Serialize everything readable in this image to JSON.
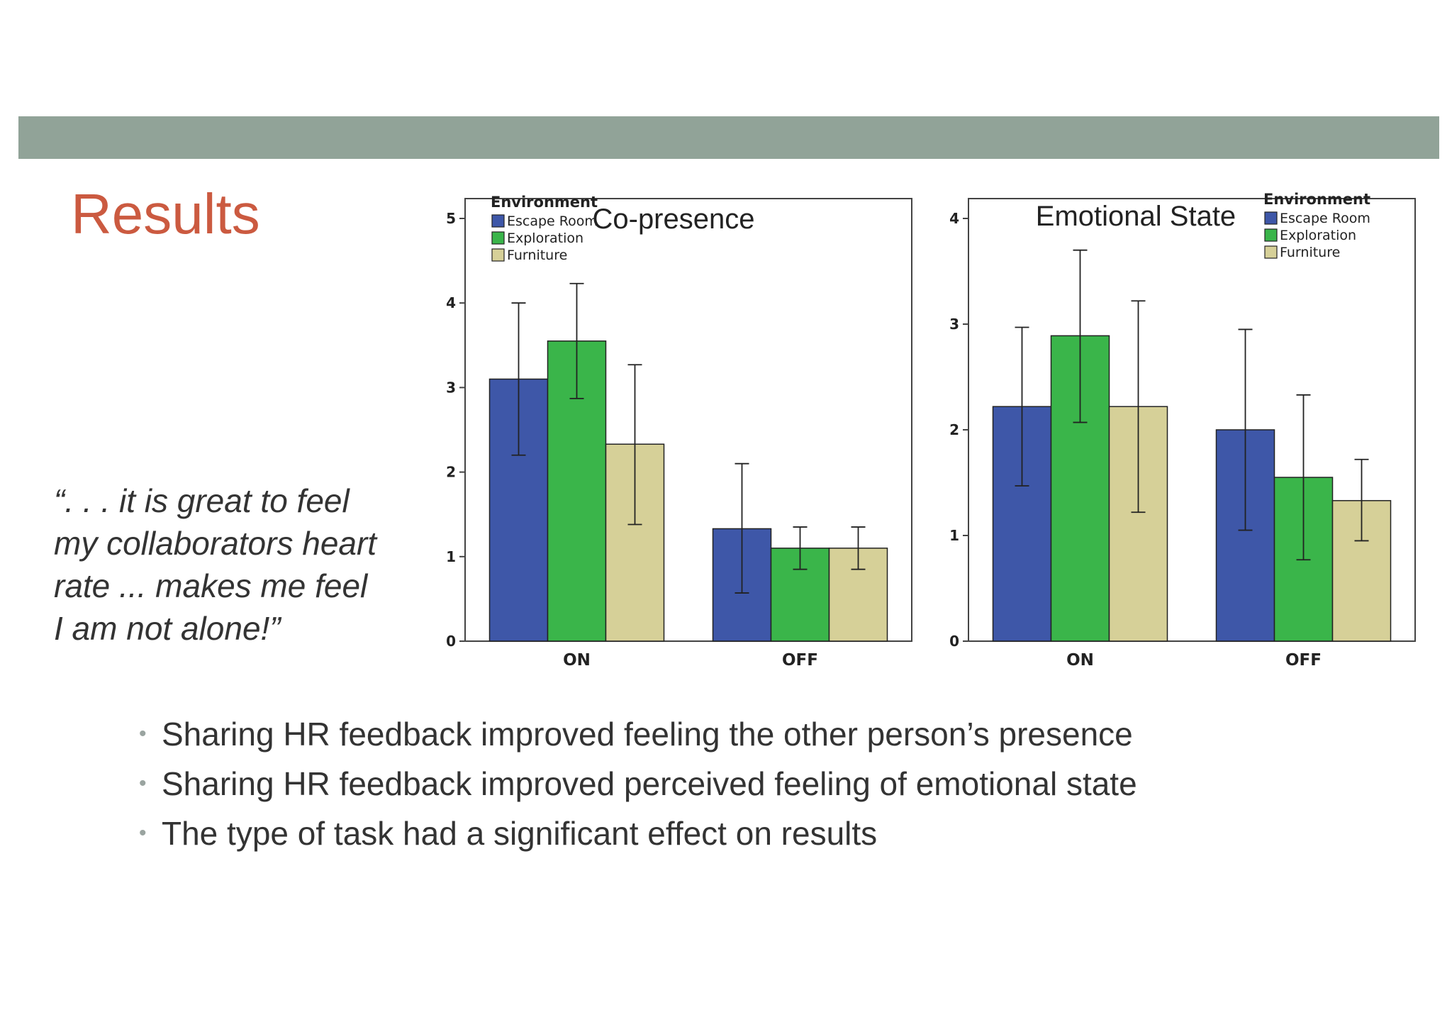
{
  "slide": {
    "title": "Results",
    "quote_lines": [
      "“. . . it is great to feel",
      "my collaborators heart",
      "rate ... makes me feel",
      "I am not alone!”"
    ],
    "bullets": [
      "Sharing HR feedback improved feeling the other person’s presence",
      "Sharing HR feedback improved perceived feeling of emotional state",
      "The type of task had a significant effect on results"
    ],
    "colors": {
      "title": "#cb5a40",
      "band": "#91a398",
      "escape_room": "#3e57a8",
      "exploration": "#3ab54a",
      "furniture": "#d6d098"
    }
  },
  "chart_data": [
    {
      "type": "bar",
      "title": "Co-presence",
      "legend_title": "Environment",
      "legend_position": "top-left",
      "categories": [
        "ON",
        "OFF"
      ],
      "ylim": [
        0,
        5
      ],
      "yticks": [
        0,
        1,
        2,
        3,
        4,
        5
      ],
      "series": [
        {
          "name": "Escape Room",
          "color": "#3e57a8",
          "values": [
            3.1,
            1.33
          ],
          "error_low": [
            2.2,
            0.57
          ],
          "error_high": [
            4.0,
            2.1
          ]
        },
        {
          "name": "Exploration",
          "color": "#3ab54a",
          "values": [
            3.55,
            1.1
          ],
          "error_low": [
            2.87,
            0.85
          ],
          "error_high": [
            4.23,
            1.35
          ]
        },
        {
          "name": "Furniture",
          "color": "#d6d098",
          "values": [
            2.33,
            1.1
          ],
          "error_low": [
            1.38,
            0.85
          ],
          "error_high": [
            3.27,
            1.35
          ]
        }
      ]
    },
    {
      "type": "bar",
      "title": "Emotional State",
      "legend_title": "Environment",
      "legend_position": "top-right",
      "categories": [
        "ON",
        "OFF"
      ],
      "ylim": [
        0,
        4
      ],
      "yticks": [
        0,
        1,
        2,
        3,
        4
      ],
      "series": [
        {
          "name": "Escape Room",
          "color": "#3e57a8",
          "values": [
            2.22,
            2.0
          ],
          "error_low": [
            1.47,
            1.05
          ],
          "error_high": [
            2.97,
            2.95
          ]
        },
        {
          "name": "Exploration",
          "color": "#3ab54a",
          "values": [
            2.89,
            1.55
          ],
          "error_low": [
            2.07,
            0.77
          ],
          "error_high": [
            3.7,
            2.33
          ]
        },
        {
          "name": "Furniture",
          "color": "#d6d098",
          "values": [
            2.22,
            1.33
          ],
          "error_low": [
            1.22,
            0.95
          ],
          "error_high": [
            3.22,
            1.72
          ]
        }
      ]
    }
  ]
}
